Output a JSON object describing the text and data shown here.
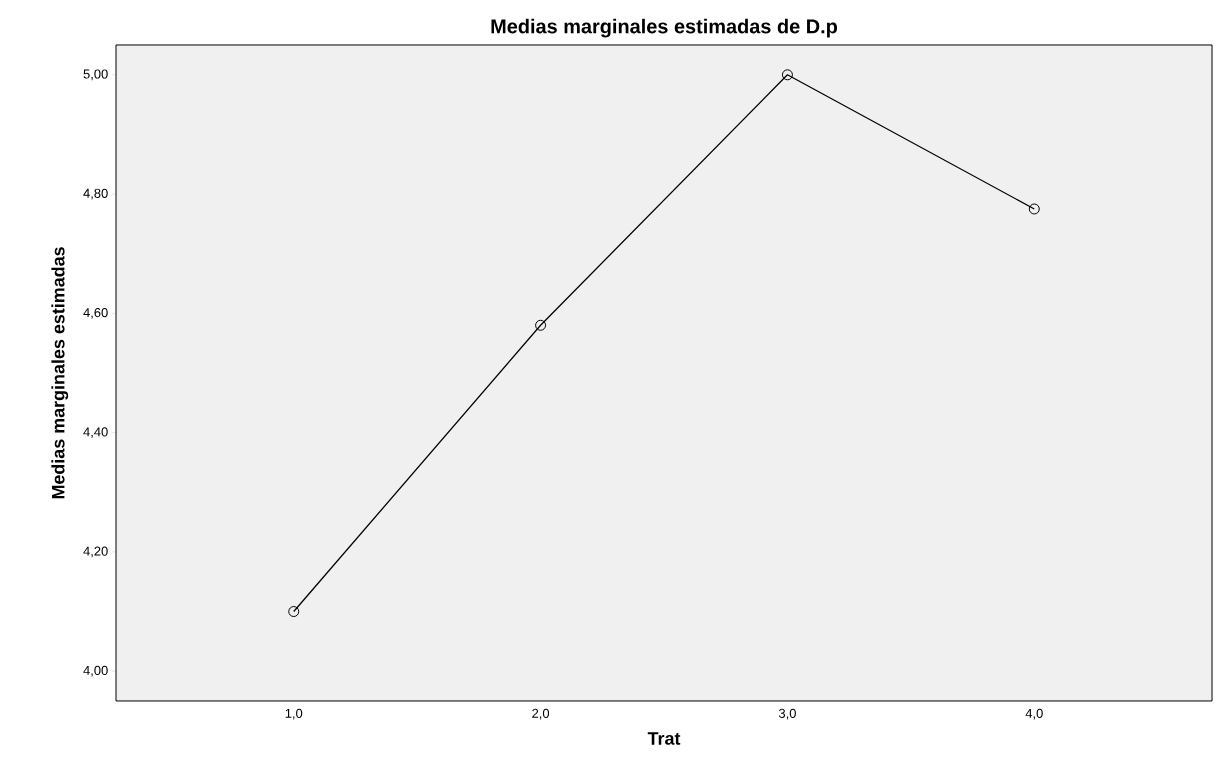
{
  "chart_data": {
    "type": "line",
    "title": "Medias marginales estimadas de D.p",
    "xlabel": "Trat",
    "ylabel": "Medias marginales estimadas",
    "categories": [
      "1,0",
      "2,0",
      "3,0",
      "4,0"
    ],
    "series": [
      {
        "color": "#000000",
        "values": [
          4.1,
          4.58,
          5.0,
          4.775
        ]
      }
    ],
    "ylim": [
      3.95,
      5.05
    ],
    "yticks": [
      {
        "value": 4.0,
        "label": "4,00"
      },
      {
        "value": 4.2,
        "label": "4,20"
      },
      {
        "value": 4.4,
        "label": "4,40"
      },
      {
        "value": 4.6,
        "label": "4,60"
      },
      {
        "value": 4.8,
        "label": "4,80"
      },
      {
        "value": 5.0,
        "label": "5,00"
      }
    ],
    "marker": "circle",
    "line_style": "solid",
    "grid": false
  }
}
